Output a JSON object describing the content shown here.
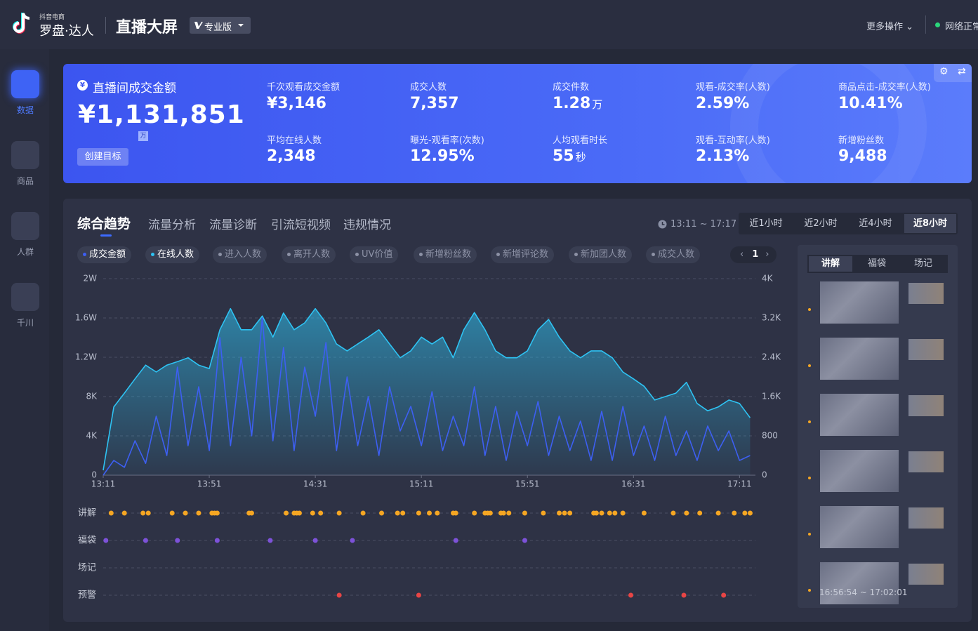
{
  "header": {
    "brand_small": "抖音电商",
    "brand": "罗盘·达人",
    "title": "直播大屏",
    "edition": "专业版",
    "more": "更多操作",
    "network": "网络正常"
  },
  "sidebar": [
    "数据",
    "商品",
    "人群",
    "千川"
  ],
  "summary": {
    "main_label": "直播间成交金额",
    "main_value": "¥1,131,851",
    "main_unit": "万",
    "button": "创建目标",
    "metrics": [
      {
        "label": "千次观看成交金额",
        "value": "¥3,146"
      },
      {
        "label": "成交人数",
        "value": "7,357"
      },
      {
        "label": "成交件数",
        "value": "1.28",
        "unit": "万"
      },
      {
        "label": "观看-成交率(人数)",
        "value": "2.59%"
      },
      {
        "label": "商品点击-成交率(人数)",
        "value": "10.41%"
      },
      {
        "label": "平均在线人数",
        "value": "2,348"
      },
      {
        "label": "曝光-观看率(次数)",
        "value": "12.95%"
      },
      {
        "label": "人均观看时长",
        "value": "55",
        "unit": "秒"
      },
      {
        "label": "观看-互动率(人数)",
        "value": "2.13%"
      },
      {
        "label": "新增粉丝数",
        "value": "9,488"
      }
    ]
  },
  "tabs": [
    "综合趋势",
    "流量分析",
    "流量诊断",
    "引流短视频",
    "违规情况"
  ],
  "time_range": "13:11 ~ 17:17",
  "range_buttons": [
    "近1小时",
    "近2小时",
    "近4小时",
    "近8小时"
  ],
  "metric_options": [
    "进入人数",
    "离开人数",
    "UV价值",
    "新增粉丝数",
    "新增评论数",
    "新加团人数",
    "成交人数"
  ],
  "pager": "1",
  "side_panel": {
    "tabs": [
      "讲解",
      "福袋",
      "场记"
    ],
    "last_range": "16:56:54 ~ 17:02:01"
  },
  "chart_data": {
    "type": "line",
    "x": [
      "13:11",
      "13:15",
      "13:19",
      "13:23",
      "13:27",
      "13:31",
      "13:35",
      "13:39",
      "13:43",
      "13:47",
      "13:51",
      "13:55",
      "13:59",
      "14:03",
      "14:07",
      "14:11",
      "14:15",
      "14:19",
      "14:23",
      "14:27",
      "14:31",
      "14:35",
      "14:39",
      "14:43",
      "14:47",
      "14:51",
      "14:55",
      "14:59",
      "15:03",
      "15:07",
      "15:11",
      "15:15",
      "15:19",
      "15:23",
      "15:27",
      "15:31",
      "15:35",
      "15:39",
      "15:43",
      "15:47",
      "15:51",
      "15:55",
      "15:59",
      "16:03",
      "16:07",
      "16:11",
      "16:15",
      "16:19",
      "16:23",
      "16:27",
      "16:31",
      "16:35",
      "16:39",
      "16:43",
      "16:47",
      "16:51",
      "16:55",
      "16:59",
      "17:03",
      "17:07",
      "17:11",
      "17:15"
    ],
    "xlim": [
      "13:11",
      "17:17"
    ],
    "xticks": [
      "13:11",
      "13:51",
      "14:31",
      "15:11",
      "15:51",
      "16:31",
      "17:11"
    ],
    "ylim": [
      0,
      20000
    ],
    "yticks": [
      0,
      {
        "value": 4000,
        "label": "4K"
      },
      {
        "value": 8000,
        "label": "8K"
      },
      {
        "value": 12000,
        "label": "1.2W"
      },
      {
        "value": 16000,
        "label": "1.6W"
      },
      {
        "value": 20000,
        "label": "2W"
      }
    ],
    "y2lim": [
      0,
      4000
    ],
    "y2ticks": [
      0,
      800,
      {
        "value": 1600,
        "label": "1.6K"
      },
      {
        "value": 2400,
        "label": "2.4K"
      },
      {
        "value": 3200,
        "label": "3.2K"
      },
      {
        "value": 4000,
        "label": "4K"
      }
    ],
    "grid": true,
    "series": [
      {
        "name": "成交金额",
        "color": "#3d5ff2",
        "values": [
          0,
          1500,
          800,
          3500,
          1200,
          6000,
          2000,
          11000,
          3000,
          9000,
          2500,
          14000,
          3000,
          12000,
          4000,
          16000,
          3500,
          13000,
          2500,
          11000,
          6000,
          13500,
          2500,
          10000,
          3000,
          8000,
          2000,
          9000,
          4500,
          7000,
          3000,
          8500,
          2500,
          6000,
          3000,
          9000,
          2000,
          7000,
          1500,
          6500,
          3000,
          7500,
          2000,
          6000,
          2500,
          5500,
          1500,
          6500,
          1500,
          7000,
          2000,
          5000,
          1500,
          6000,
          2000,
          4500,
          1500,
          5000,
          2500,
          4500,
          1500,
          2000
        ]
      },
      {
        "name": "在线人数",
        "color": "#2ec3f3",
        "axis": "y2",
        "values": [
          100,
          1390,
          1670,
          1960,
          2240,
          2100,
          2240,
          2310,
          2390,
          2240,
          2170,
          2960,
          3390,
          2960,
          2960,
          3240,
          2810,
          3300,
          2960,
          3100,
          3390,
          3100,
          2670,
          2530,
          2670,
          2810,
          2960,
          2670,
          2390,
          2530,
          2810,
          2670,
          2810,
          2390,
          2960,
          3310,
          2960,
          2530,
          2390,
          2390,
          2530,
          2960,
          3170,
          2810,
          2530,
          2390,
          2530,
          2530,
          2390,
          2100,
          1960,
          1810,
          1530,
          1600,
          1670,
          1890,
          1460,
          1310,
          1390,
          1530,
          1460,
          1170
        ]
      }
    ],
    "events": [
      {
        "name": "讲解",
        "color": "#f5a623",
        "times": [
          "13:14",
          "13:19",
          "13:26",
          "13:28",
          "13:37",
          "13:42",
          "13:47",
          "13:52",
          "13:53",
          "13:54",
          "14:06",
          "14:07",
          "14:20",
          "14:23",
          "14:24",
          "14:25",
          "14:30",
          "14:33",
          "14:40",
          "14:49",
          "14:56",
          "15:02",
          "15:04",
          "15:10",
          "15:14",
          "15:17",
          "15:23",
          "15:24",
          "15:31",
          "15:35",
          "15:36",
          "15:37",
          "15:41",
          "15:42",
          "15:44",
          "15:50",
          "15:57",
          "16:03",
          "16:05",
          "16:07",
          "16:16",
          "16:17",
          "16:19",
          "16:22",
          "16:24",
          "16:27",
          "16:35",
          "16:46",
          "16:51",
          "16:56",
          "17:03",
          "17:09",
          "17:13",
          "17:15"
        ]
      },
      {
        "name": "福袋",
        "color": "#7d52d9",
        "times": [
          "13:12",
          "13:27",
          "13:39",
          "13:54",
          "14:14",
          "14:31",
          "14:45",
          "15:24",
          "15:50"
        ]
      },
      {
        "name": "场记",
        "times": []
      },
      {
        "name": "预警",
        "color": "#e84545",
        "times": [
          "14:40",
          "15:10",
          "16:30",
          "16:50",
          "17:05"
        ]
      }
    ]
  }
}
